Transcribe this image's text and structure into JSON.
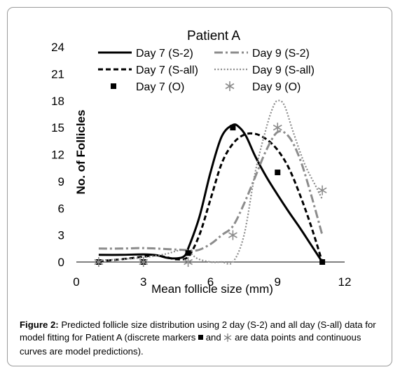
{
  "chart_data": {
    "type": "line",
    "title": "Patient A",
    "xlabel": "Mean follicle size (mm)",
    "ylabel": "No. of Follicles",
    "xlim": [
      0,
      12
    ],
    "ylim": [
      0,
      24
    ],
    "x_ticks": [
      "0",
      "3",
      "6",
      "9",
      "12"
    ],
    "y_ticks": [
      "0",
      "3",
      "6",
      "9",
      "12",
      "15",
      "18",
      "21",
      "24"
    ],
    "grid": false,
    "legend_position": "top",
    "series": [
      {
        "name": "Day 7 (S-2)",
        "style": "solid",
        "color": "#000000",
        "x": [
          1,
          2,
          3,
          3.6,
          4,
          4.4,
          4.8,
          5,
          5.5,
          6,
          6.5,
          7,
          7.3,
          7.6,
          8,
          8.5,
          9,
          9.5,
          10,
          10.5,
          11
        ],
        "y": [
          0.8,
          0.8,
          0.85,
          0.75,
          0.5,
          0.4,
          0.6,
          1.5,
          5,
          10,
          14,
          15.3,
          15,
          14,
          11.8,
          9.5,
          7.5,
          5.6,
          3.8,
          1.9,
          0
        ]
      },
      {
        "name": "Day 7 (S-all)",
        "style": "dashed",
        "color": "#000000",
        "x": [
          1,
          2,
          3,
          3.5,
          4,
          4.5,
          5,
          5.5,
          6,
          6.5,
          7,
          7.5,
          8,
          8.5,
          9,
          9.5,
          10,
          10.5,
          11
        ],
        "y": [
          0.1,
          0.3,
          0.6,
          0.75,
          0.55,
          0.3,
          0.6,
          3,
          7,
          11,
          13.2,
          14.2,
          14.3,
          13.7,
          12.5,
          10.5,
          7.5,
          4,
          0
        ]
      },
      {
        "name": "Day 9 (S-2)",
        "style": "dashdot",
        "color": "#8c8c8c",
        "x": [
          1,
          2,
          3,
          4,
          4.8,
          5.4,
          6,
          6.5,
          7,
          7.5,
          8,
          8.5,
          9,
          9.5,
          10,
          10.5,
          11
        ],
        "y": [
          1.5,
          1.5,
          1.55,
          1.45,
          1.35,
          1.3,
          2,
          3,
          4,
          6.5,
          9.5,
          12.5,
          14.5,
          14,
          11.5,
          7.5,
          3
        ]
      },
      {
        "name": "Day 9 (S-all)",
        "style": "dotted",
        "color": "#8c8c8c",
        "x": [
          1,
          2,
          3,
          4,
          4.6,
          5,
          5.4,
          6,
          6.5,
          7,
          7.5,
          8,
          8.5,
          8.8,
          9,
          9.3,
          9.7,
          10.2,
          10.7,
          11
        ],
        "y": [
          0.2,
          0.3,
          0.5,
          0.9,
          1.3,
          1.2,
          0.4,
          0,
          0,
          0,
          3,
          10,
          15,
          17.3,
          18,
          17.5,
          14.5,
          11,
          8.5,
          7
        ]
      },
      {
        "name": "Day 7 (O)",
        "marker": "square",
        "color": "#000000",
        "x": [
          1,
          3,
          5,
          7,
          9,
          11
        ],
        "y": [
          0,
          0,
          1,
          15,
          10,
          0
        ]
      },
      {
        "name": "Day 9 (O)",
        "marker": "asterisk",
        "color": "#8c8c8c",
        "x": [
          1,
          3,
          5,
          7,
          9,
          11
        ],
        "y": [
          0,
          0,
          0,
          3,
          15,
          8
        ]
      }
    ]
  },
  "caption": {
    "label": "Figure 2:",
    "text_before_square": " Predicted follicle size distribution using 2 day (S-2) and all day (S-all) data for model fitting for Patient A (discrete markers ",
    "text_between": " and ",
    "text_after": " are data points and continuous curves are model predictions)."
  }
}
